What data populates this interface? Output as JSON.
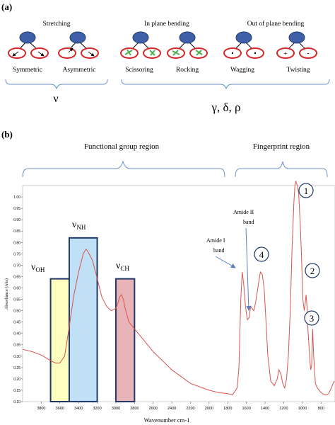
{
  "panel_a": {
    "label": "(a)",
    "group_labels": [
      "Stretching",
      "In plane bending",
      "Out of plane bending"
    ],
    "mode_labels": [
      "Symmetric",
      "Asymmetric",
      "Scissoring",
      "Rocking",
      "Wagging",
      "Twisting"
    ],
    "symbol_stretch": "ν",
    "symbol_bend": "γ, δ, ρ",
    "twisting_signs": [
      "+",
      "-"
    ]
  },
  "panel_b": {
    "label": "(b)",
    "region_labels": [
      "Functional group region",
      "Fingerprint region"
    ],
    "band_labels": {
      "oh": {
        "main": "ν",
        "sub": "OH"
      },
      "nh": {
        "main": "ν",
        "sub": "NH"
      },
      "ch": {
        "main": "ν",
        "sub": "CH"
      }
    },
    "amide_i": [
      "Amide  I",
      "band"
    ],
    "amide_ii": [
      "Amide  II",
      "band"
    ],
    "peak_numbers": [
      "1",
      "2",
      "3",
      "4"
    ]
  },
  "colors": {
    "spectrum": "#d9534f",
    "bracket": "#6b8fc7",
    "atom_blue": "#3f5fa8",
    "atom_red": "#d42a2a",
    "oh_fill": "#ffffc0",
    "nh_fill": "#bfe0f5",
    "ch_fill": "#e8b4b8",
    "box_border": "#1f3a68"
  },
  "chart_data": {
    "type": "line",
    "xlabel": "Wavenumber  cm-1",
    "ylabel": "Absorbance (Abs)",
    "x_reversed": true,
    "xlim": [
      4000,
      650
    ],
    "ylim": [
      0.1,
      1.05
    ],
    "x_ticks": [
      3800,
      3600,
      3400,
      3200,
      3000,
      2800,
      2600,
      2400,
      2200,
      2000,
      1800,
      1600,
      1400,
      1200,
      1000,
      800
    ],
    "y_ticks": [
      0.1,
      0.15,
      0.2,
      0.25,
      0.3,
      0.35,
      0.4,
      0.45,
      0.5,
      0.55,
      0.6,
      0.65,
      0.7,
      0.75,
      0.8,
      0.85,
      0.9,
      0.95,
      1.0
    ],
    "series": [
      {
        "x": [
          4000,
          3900,
          3800,
          3700,
          3650,
          3600,
          3550,
          3500,
          3450,
          3400,
          3350,
          3320,
          3300,
          3250,
          3200,
          3150,
          3100,
          3050,
          3000,
          2980,
          2960,
          2940,
          2920,
          2900,
          2880,
          2860,
          2840,
          2800,
          2700,
          2600,
          2500,
          2400,
          2300,
          2200,
          2100,
          2000,
          1900,
          1800,
          1750,
          1700,
          1680,
          1660,
          1645,
          1630,
          1610,
          1590,
          1570,
          1555,
          1540,
          1520,
          1500,
          1470,
          1450,
          1430,
          1410,
          1390,
          1370,
          1340,
          1300,
          1270,
          1250,
          1230,
          1210,
          1190,
          1170,
          1150,
          1130,
          1110,
          1090,
          1080,
          1070,
          1055,
          1040,
          1025,
          1010,
          995,
          980,
          970,
          960,
          950,
          940,
          930,
          920,
          910,
          900,
          890,
          880,
          870,
          860,
          840,
          820,
          800,
          780,
          760,
          740,
          720,
          700,
          680,
          660
        ],
        "y": [
          0.33,
          0.32,
          0.305,
          0.28,
          0.27,
          0.27,
          0.3,
          0.43,
          0.57,
          0.67,
          0.75,
          0.77,
          0.76,
          0.72,
          0.64,
          0.56,
          0.52,
          0.5,
          0.51,
          0.53,
          0.56,
          0.57,
          0.55,
          0.51,
          0.48,
          0.45,
          0.44,
          0.42,
          0.37,
          0.32,
          0.28,
          0.24,
          0.21,
          0.18,
          0.165,
          0.15,
          0.14,
          0.135,
          0.13,
          0.16,
          0.25,
          0.55,
          0.67,
          0.62,
          0.52,
          0.46,
          0.47,
          0.52,
          0.51,
          0.5,
          0.54,
          0.62,
          0.67,
          0.66,
          0.6,
          0.45,
          0.3,
          0.19,
          0.17,
          0.2,
          0.24,
          0.22,
          0.18,
          0.16,
          0.2,
          0.3,
          0.5,
          0.78,
          0.98,
          1.05,
          1.07,
          1.05,
          1.02,
          0.9,
          0.75,
          0.55,
          0.5,
          0.53,
          0.57,
          0.52,
          0.42,
          0.35,
          0.28,
          0.24,
          0.26,
          0.42,
          0.31,
          0.24,
          0.18,
          0.16,
          0.15,
          0.14,
          0.135,
          0.13,
          0.13,
          0.135,
          0.15,
          0.17,
          0.19
        ]
      }
    ],
    "shaded_bands": [
      {
        "name": "OH",
        "x_range": [
          3700,
          3500
        ]
      },
      {
        "name": "NH",
        "x_range": [
          3500,
          3200
        ]
      },
      {
        "name": "CH",
        "x_range": [
          3000,
          2800
        ]
      }
    ]
  }
}
